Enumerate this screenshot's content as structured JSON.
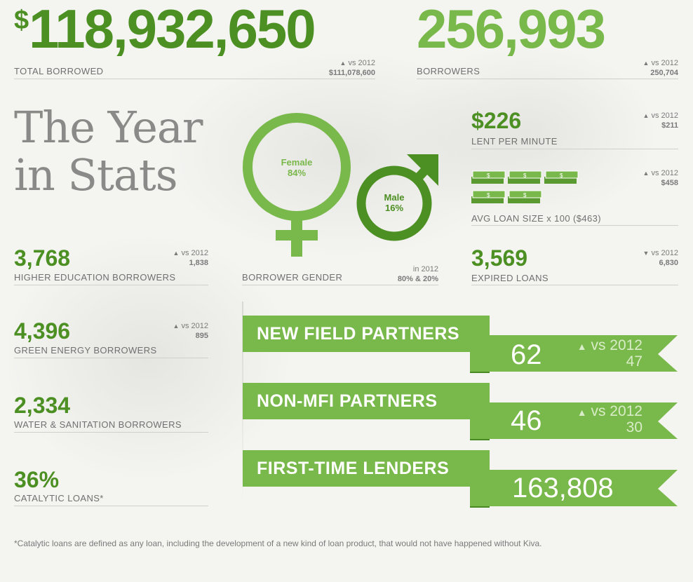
{
  "colors": {
    "dark_green": "#4c8f22",
    "light_green": "#79b84a",
    "ribbon_dark": "#4a8a24",
    "gray_text": "#6a6a6a",
    "title_gray": "#8a8a88"
  },
  "hero": {
    "borrowed": {
      "currency": "$",
      "value": "118,932,650",
      "label": "TOTAL BORROWED",
      "cmp_label": "vs 2012",
      "cmp_value": "$111,078,600"
    },
    "borrowers": {
      "value": "256,993",
      "label": "BORROWERS",
      "cmp_label": "vs 2012",
      "cmp_value": "250,704"
    }
  },
  "title": {
    "line1": "The Year",
    "line2": "in Stats"
  },
  "left_stats": [
    {
      "value": "3,768",
      "label": "HIGHER EDUCATION BORROWERS",
      "cmp_label": "vs 2012",
      "cmp_value": "1,838"
    },
    {
      "value": "4,396",
      "label": "GREEN ENERGY BORROWERS",
      "cmp_label": "vs 2012",
      "cmp_value": "895"
    },
    {
      "value": "2,334",
      "label": "WATER & SANITATION BORROWERS"
    },
    {
      "value": "36%",
      "label": "CATALYTIC LOANS*"
    }
  ],
  "gender": {
    "female_label": "Female",
    "female_pct": "84%",
    "male_label": "Male",
    "male_pct": "16%",
    "label": "BORROWER GENDER",
    "cmp_line1": "in 2012",
    "cmp_line2": "80% & 20%"
  },
  "right_stats": {
    "lent_per_minute": {
      "value": "$226",
      "label": "LENT PER MINUTE",
      "cmp_label": "vs 2012",
      "cmp_value": "$211"
    },
    "avg_loan": {
      "label": "AVG LOAN SIZE x 100 ($463)",
      "cmp_label": "vs 2012",
      "cmp_value": "$458",
      "bill_icon": "dollar-bills-icon",
      "stack_count": 5
    },
    "expired": {
      "value": "3,569",
      "label": "EXPIRED LOANS",
      "cmp_label": "vs 2012",
      "cmp_value": "6,830"
    }
  },
  "ribbons": [
    {
      "title": "NEW FIELD PARTNERS",
      "value": "62",
      "cmp_label": "vs 2012",
      "cmp_value": "47"
    },
    {
      "title": "NON-MFI PARTNERS",
      "value": "46",
      "cmp_label": "vs 2012",
      "cmp_value": "30"
    },
    {
      "title": "FIRST-TIME LENDERS",
      "value": "163,808"
    }
  ],
  "footnote": "*Catalytic loans are defined as any loan, including the development of a new kind of loan product, that would not have happened without Kiva."
}
